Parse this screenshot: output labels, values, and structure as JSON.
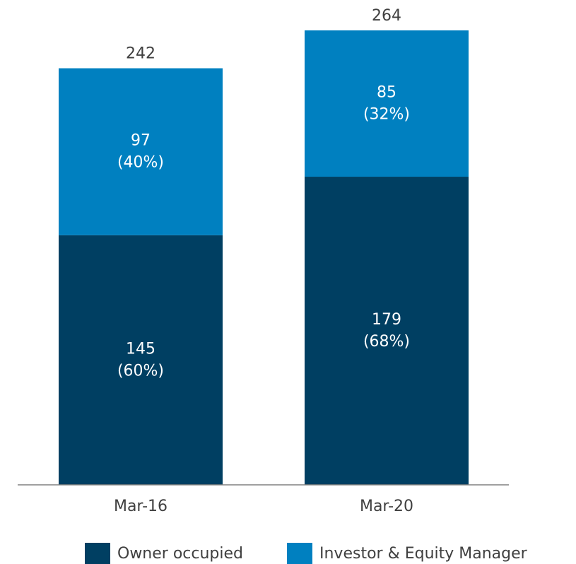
{
  "chart_data": {
    "type": "stacked_bar",
    "categories": [
      "Mar-16",
      "Mar-20"
    ],
    "series": [
      {
        "name": "Owner occupied",
        "color": "#003f62",
        "values": [
          145,
          179
        ],
        "share_labels": [
          "(60%)",
          "(68%)"
        ]
      },
      {
        "name": "Investor & Equity Manager",
        "color": "#0080c0",
        "values": [
          97,
          85
        ],
        "share_labels": [
          "(40%)",
          "(32%)"
        ]
      }
    ],
    "totals": [
      242,
      264
    ],
    "ylim": [
      0,
      264
    ]
  }
}
